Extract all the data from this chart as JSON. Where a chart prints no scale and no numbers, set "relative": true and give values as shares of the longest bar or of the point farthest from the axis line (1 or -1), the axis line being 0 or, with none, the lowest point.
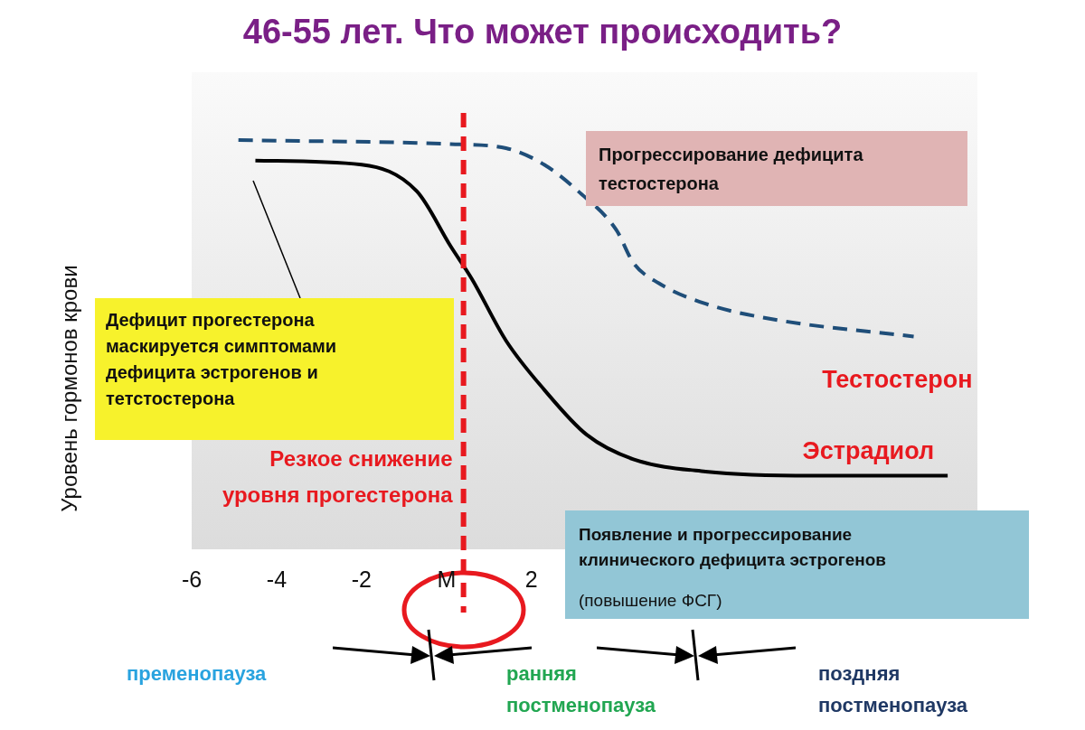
{
  "chart_data": {
    "type": "line",
    "title": "46-55 лет. Что может происходить?",
    "ylabel": "Уровень гормонов крови",
    "relative": true,
    "legend": false,
    "grid": false,
    "xlim": [
      -6,
      12.5
    ],
    "xticks": [
      -6,
      -4,
      -2,
      {
        "value": 0,
        "label": "M"
      },
      2
    ],
    "series": [
      {
        "name": "Тестостерон",
        "color": "#1f4e79",
        "line_style": "dashed",
        "x": [
          -4.9,
          0.1,
          1.4,
          2.3,
          3.1,
          4.0,
          4.4,
          5.0,
          6.1,
          7.8,
          11.0
        ],
        "values": [
          1.0,
          0.99,
          0.98,
          0.94,
          0.875,
          0.78,
          0.7,
          0.65,
          0.6,
          0.56,
          0.52
        ]
      },
      {
        "name": "Эстрадиол",
        "color": "#000000",
        "line_style": "solid",
        "x": [
          -4.5,
          -2.0,
          -0.7,
          0.1,
          0.6,
          1.4,
          2.3,
          3.3,
          4.4,
          6.1,
          8.6,
          11.8
        ],
        "values": [
          0.95,
          0.94,
          0.875,
          0.74,
          0.66,
          0.51,
          0.39,
          0.28,
          0.22,
          0.19,
          0.18,
          0.18
        ]
      }
    ],
    "ref_lines": [
      {
        "axis": "x",
        "value": 0.4,
        "label": "Резкое снижение\nуровня прогестерона",
        "color": "#e8191f",
        "line_style": "dashed"
      }
    ],
    "annotations": [
      "Прогрессирование дефицита тестостерона",
      "Дефицит прогестерона маскируется симптомами дефицита эстрогенов и тетстостерона",
      "Появление и прогрессирование клинического дефицита эстрогенов",
      "(повышение ФСГ)",
      "пременопауза",
      "ранняя постменопауза",
      "поздняя постменопауза"
    ]
  }
}
